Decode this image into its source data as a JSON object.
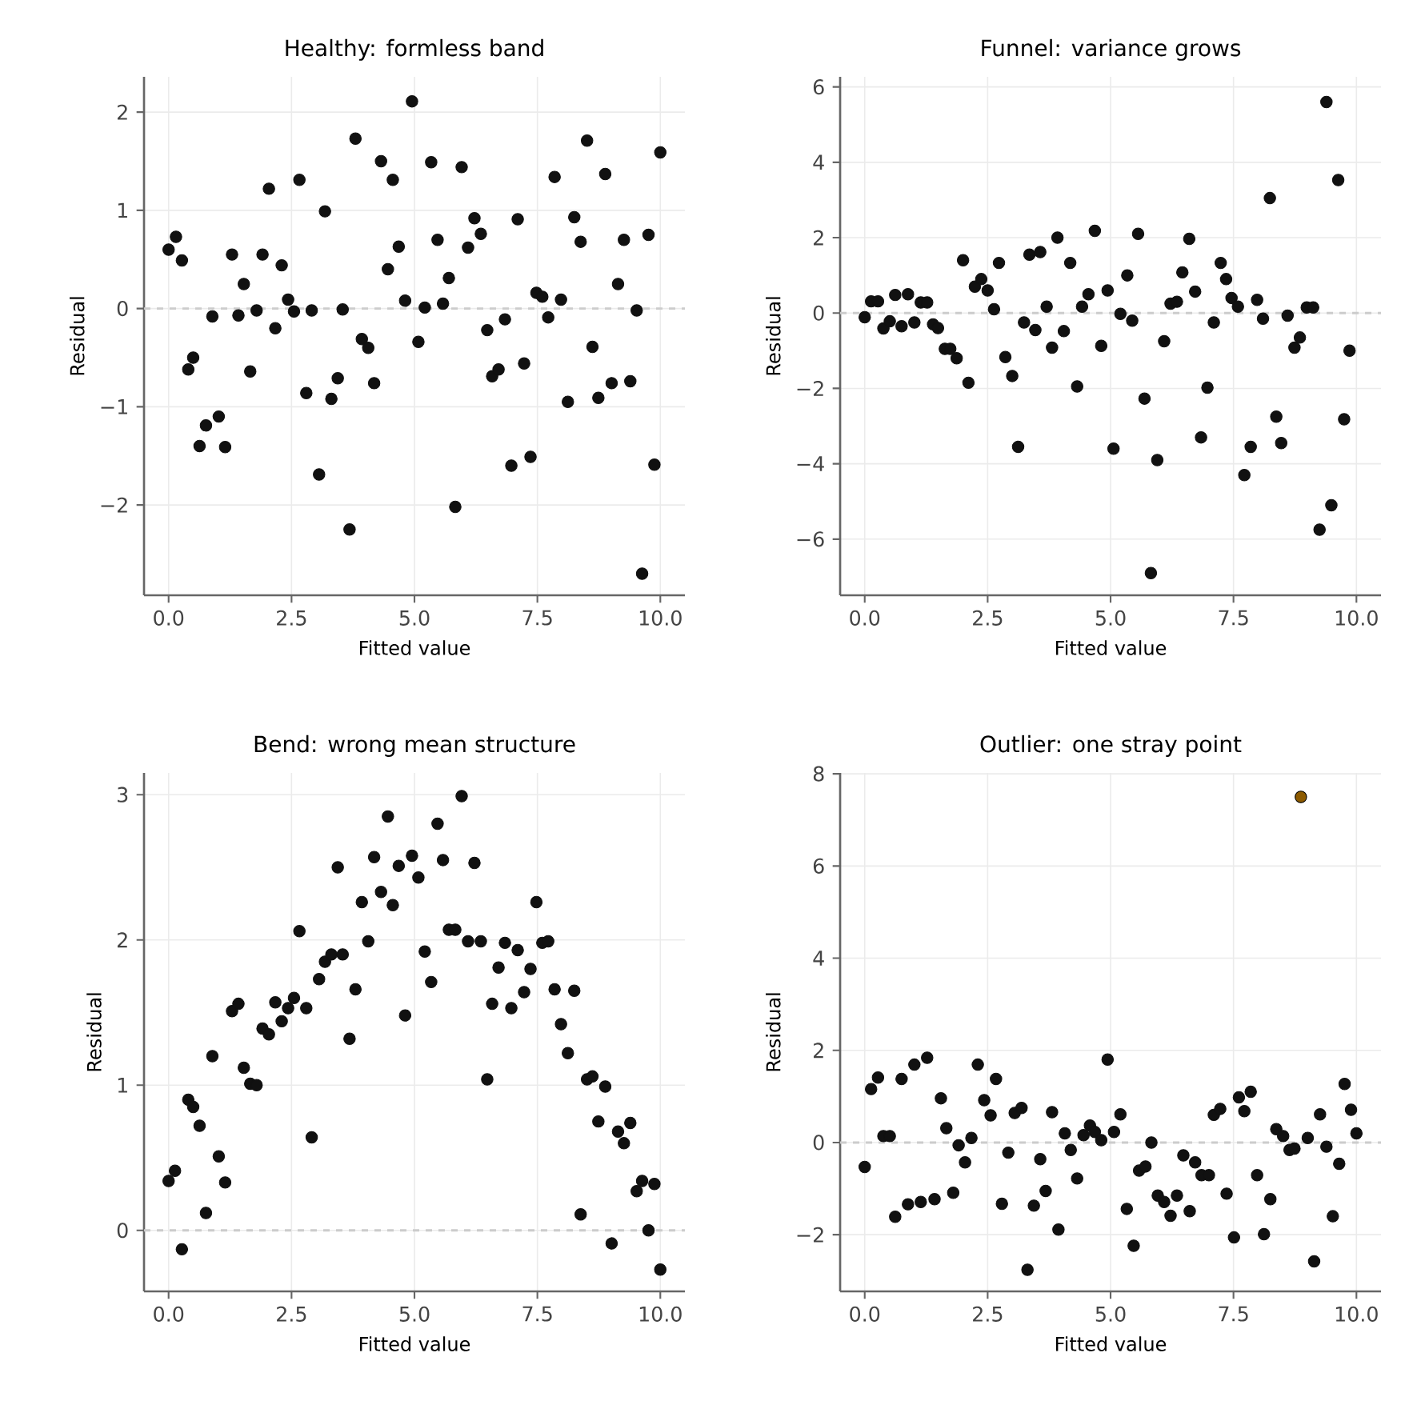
{
  "chart_data": [
    {
      "type": "scatter",
      "title": "Healthy: formless band",
      "xlabel": "Fitted value",
      "ylabel": "Residual",
      "marker": "circle",
      "grid": true,
      "xlim": [
        -0.5,
        10.5
      ],
      "ylim": [
        -2.92,
        2.36
      ],
      "xticks": [
        {
          "value": 0,
          "label": "0.0"
        },
        {
          "value": 2.5,
          "label": "2.5"
        },
        {
          "value": 5,
          "label": "5.0"
        },
        {
          "value": 7.5,
          "label": "7.5"
        },
        {
          "value": 10,
          "label": "10.0"
        }
      ],
      "yticks": [
        {
          "value": -2,
          "label": "−2"
        },
        {
          "value": -1,
          "label": "−1"
        },
        0,
        1,
        2
      ],
      "ref_lines": [
        {
          "axis": "y",
          "value": 0,
          "color": "#cccccc",
          "line_style": "dashed"
        }
      ],
      "x": [
        0.0,
        0.15,
        0.27,
        0.4,
        0.5,
        0.63,
        0.76,
        0.89,
        1.02,
        1.15,
        1.29,
        1.42,
        1.53,
        1.66,
        1.79,
        1.91,
        2.04,
        2.17,
        2.3,
        2.43,
        2.55,
        2.66,
        2.8,
        2.91,
        3.06,
        3.18,
        3.31,
        3.44,
        3.54,
        3.68,
        3.8,
        3.93,
        4.06,
        4.18,
        4.32,
        4.46,
        4.56,
        4.68,
        4.81,
        4.95,
        5.08,
        5.21,
        5.34,
        5.47,
        5.58,
        5.7,
        5.83,
        5.96,
        6.09,
        6.22,
        6.35,
        6.48,
        6.58,
        6.71,
        6.84,
        6.97,
        7.1,
        7.23,
        7.36,
        7.48,
        7.6,
        7.72,
        7.85,
        7.98,
        8.12,
        8.25,
        8.38,
        8.51,
        8.62,
        8.74,
        8.88,
        9.01,
        9.14,
        9.26,
        9.39,
        9.52,
        9.63,
        9.76,
        9.88,
        10.0
      ],
      "series": [
        {
          "color": "#111111",
          "values": [
            0.6,
            0.73,
            0.49,
            -0.62,
            -0.5,
            -1.4,
            -1.19,
            -0.08,
            -1.1,
            -1.41,
            0.55,
            -0.07,
            0.25,
            -0.64,
            -0.02,
            0.55,
            1.22,
            -0.2,
            0.44,
            0.09,
            -0.03,
            1.31,
            -0.86,
            -0.02,
            -1.69,
            0.99,
            -0.92,
            -0.71,
            -0.01,
            -2.25,
            1.73,
            -0.31,
            -0.4,
            -0.76,
            1.5,
            0.4,
            1.31,
            0.63,
            0.08,
            2.11,
            -0.34,
            0.01,
            1.49,
            0.7,
            0.05,
            0.31,
            -2.02,
            1.44,
            0.62,
            0.92,
            0.76,
            -0.22,
            -0.69,
            -0.62,
            -0.11,
            -1.6,
            0.91,
            -0.56,
            -1.51,
            0.16,
            0.12,
            -0.09,
            1.34,
            0.09,
            -0.95,
            0.93,
            0.68,
            1.71,
            -0.39,
            -0.91,
            1.37,
            -0.76,
            0.25,
            0.7,
            -0.74,
            -0.02,
            -2.7,
            0.75,
            -1.59,
            1.59
          ]
        }
      ]
    },
    {
      "type": "scatter",
      "title": "Funnel: variance grows",
      "xlabel": "Fitted value",
      "ylabel": "Residual",
      "marker": "circle",
      "grid": true,
      "xlim": [
        -0.5,
        10.5
      ],
      "ylim": [
        -7.49,
        6.27
      ],
      "xticks": [
        {
          "value": 0,
          "label": "0.0"
        },
        {
          "value": 2.5,
          "label": "2.5"
        },
        {
          "value": 5,
          "label": "5.0"
        },
        {
          "value": 7.5,
          "label": "7.5"
        },
        {
          "value": 10,
          "label": "10.0"
        }
      ],
      "yticks": [
        {
          "value": -6,
          "label": "−6"
        },
        {
          "value": -4,
          "label": "−4"
        },
        {
          "value": -2,
          "label": "−2"
        },
        0,
        2,
        4,
        6
      ],
      "ref_lines": [
        {
          "axis": "y",
          "value": 0,
          "color": "#cccccc",
          "line_style": "dashed"
        }
      ],
      "x": [
        0.0,
        0.13,
        0.27,
        0.38,
        0.51,
        0.62,
        0.75,
        0.88,
        1.01,
        1.14,
        1.27,
        1.39,
        1.49,
        1.63,
        1.74,
        1.87,
        2.0,
        2.11,
        2.24,
        2.37,
        2.5,
        2.63,
        2.73,
        2.86,
        3.0,
        3.12,
        3.24,
        3.35,
        3.47,
        3.57,
        3.7,
        3.81,
        3.92,
        4.05,
        4.18,
        4.32,
        4.42,
        4.55,
        4.68,
        4.81,
        4.94,
        5.06,
        5.2,
        5.34,
        5.44,
        5.56,
        5.69,
        5.82,
        5.95,
        6.09,
        6.22,
        6.35,
        6.46,
        6.6,
        6.72,
        6.84,
        6.97,
        7.1,
        7.24,
        7.35,
        7.46,
        7.59,
        7.72,
        7.85,
        7.98,
        8.1,
        8.24,
        8.37,
        8.47,
        8.6,
        8.74,
        8.85,
        8.99,
        9.12,
        9.25,
        9.39,
        9.49,
        9.63,
        9.75,
        9.86
      ],
      "series": [
        {
          "color": "#111111",
          "values": [
            -0.11,
            0.31,
            0.31,
            -0.41,
            -0.22,
            0.48,
            -0.35,
            0.5,
            -0.25,
            0.28,
            0.28,
            -0.3,
            -0.4,
            -0.95,
            -0.95,
            -1.2,
            1.4,
            -1.85,
            0.7,
            0.9,
            0.6,
            0.1,
            1.33,
            -1.17,
            -1.67,
            -3.55,
            -0.25,
            1.55,
            -0.45,
            1.62,
            0.17,
            -0.92,
            2.0,
            -0.48,
            1.33,
            -1.95,
            0.17,
            0.5,
            2.18,
            -0.87,
            0.6,
            -3.6,
            -0.02,
            1.0,
            -0.2,
            2.1,
            -2.27,
            -6.9,
            -3.9,
            -0.75,
            0.25,
            0.3,
            1.08,
            1.97,
            0.57,
            -3.3,
            -1.98,
            -0.25,
            1.33,
            0.9,
            0.4,
            0.17,
            -4.3,
            -3.55,
            0.35,
            -0.15,
            3.05,
            -2.75,
            -3.45,
            -0.07,
            -0.92,
            -0.65,
            0.15,
            0.15,
            -5.75,
            5.6,
            -5.1,
            3.53,
            -2.82,
            -1.0
          ]
        }
      ]
    },
    {
      "type": "scatter",
      "title": "Bend: wrong mean structure",
      "xlabel": "Fitted value",
      "ylabel": "Residual",
      "marker": "circle",
      "grid": true,
      "xlim": [
        -0.5,
        10.5
      ],
      "ylim": [
        -0.42,
        3.15
      ],
      "xticks": [
        {
          "value": 0,
          "label": "0.0"
        },
        {
          "value": 2.5,
          "label": "2.5"
        },
        {
          "value": 5,
          "label": "5.0"
        },
        {
          "value": 7.5,
          "label": "7.5"
        },
        {
          "value": 10,
          "label": "10.0"
        }
      ],
      "yticks": [
        0,
        1,
        2,
        3
      ],
      "ref_lines": [
        {
          "axis": "y",
          "value": 0,
          "color": "#cccccc",
          "line_style": "dashed"
        }
      ],
      "x": [
        0.0,
        0.13,
        0.27,
        0.4,
        0.5,
        0.63,
        0.76,
        0.89,
        1.02,
        1.15,
        1.29,
        1.42,
        1.53,
        1.66,
        1.79,
        1.91,
        2.04,
        2.17,
        2.3,
        2.43,
        2.55,
        2.66,
        2.8,
        2.91,
        3.06,
        3.18,
        3.31,
        3.44,
        3.54,
        3.68,
        3.8,
        3.93,
        4.06,
        4.18,
        4.32,
        4.46,
        4.56,
        4.68,
        4.81,
        4.95,
        5.08,
        5.21,
        5.34,
        5.47,
        5.58,
        5.7,
        5.83,
        5.96,
        6.09,
        6.22,
        6.35,
        6.48,
        6.58,
        6.71,
        6.84,
        6.97,
        7.1,
        7.23,
        7.36,
        7.48,
        7.6,
        7.72,
        7.85,
        7.98,
        8.12,
        8.25,
        8.38,
        8.51,
        8.62,
        8.74,
        8.88,
        9.01,
        9.14,
        9.26,
        9.39,
        9.52,
        9.63,
        9.76,
        9.88,
        10.0
      ],
      "series": [
        {
          "color": "#111111",
          "values": [
            0.34,
            0.41,
            -0.13,
            0.9,
            0.85,
            0.72,
            0.12,
            1.2,
            0.51,
            0.33,
            1.51,
            1.56,
            1.12,
            1.01,
            1.0,
            1.39,
            1.35,
            1.57,
            1.44,
            1.53,
            1.6,
            2.06,
            1.53,
            0.64,
            1.73,
            1.85,
            1.9,
            2.5,
            1.9,
            1.32,
            1.66,
            2.26,
            1.99,
            2.57,
            2.33,
            2.85,
            2.24,
            2.51,
            1.48,
            2.58,
            2.43,
            1.92,
            1.71,
            2.8,
            2.55,
            2.07,
            2.07,
            2.99,
            1.99,
            2.53,
            1.99,
            1.04,
            1.56,
            1.81,
            1.98,
            1.53,
            1.93,
            1.64,
            1.8,
            2.26,
            1.98,
            1.99,
            1.66,
            1.42,
            1.22,
            1.65,
            0.11,
            1.04,
            1.06,
            0.75,
            0.99,
            -0.09,
            0.68,
            0.6,
            0.74,
            0.27,
            0.34,
            0.0,
            0.32,
            -0.27
          ]
        }
      ]
    },
    {
      "type": "scatter",
      "title": "Outlier: one stray point",
      "xlabel": "Fitted value",
      "ylabel": "Residual",
      "marker": "circle",
      "grid": true,
      "xlim": [
        -0.5,
        10.5
      ],
      "ylim": [
        -3.23,
        8.02
      ],
      "xticks": [
        {
          "value": 0,
          "label": "0.0"
        },
        {
          "value": 2.5,
          "label": "2.5"
        },
        {
          "value": 5,
          "label": "5.0"
        },
        {
          "value": 7.5,
          "label": "7.5"
        },
        {
          "value": 10,
          "label": "10.0"
        }
      ],
      "yticks": [
        {
          "value": -2,
          "label": "−2"
        },
        0,
        2,
        4,
        6,
        8
      ],
      "ref_lines": [
        {
          "axis": "y",
          "value": 0,
          "color": "#cccccc",
          "line_style": "dashed"
        }
      ],
      "series": [
        {
          "color": "#111111",
          "x": [
            0.0,
            0.13,
            0.27,
            0.38,
            0.51,
            0.62,
            0.75,
            0.88,
            1.01,
            1.14,
            1.27,
            1.42,
            1.55,
            1.66,
            1.8,
            1.91,
            2.04,
            2.17,
            2.3,
            2.43,
            2.56,
            2.67,
            2.79,
            2.92,
            3.05,
            3.19,
            3.31,
            3.44,
            3.57,
            3.68,
            3.81,
            3.94,
            4.07,
            4.19,
            4.32,
            4.45,
            4.58,
            4.68,
            4.81,
            4.94,
            5.07,
            5.2,
            5.33,
            5.47,
            5.58,
            5.71,
            5.83,
            5.96,
            6.09,
            6.22,
            6.35,
            6.48,
            6.61,
            6.72,
            6.85,
            7.0,
            7.1,
            7.23,
            7.36,
            7.51,
            7.61,
            7.72,
            7.85,
            7.98,
            8.12,
            8.25,
            8.37,
            8.51,
            8.64,
            8.74,
            9.01,
            9.14,
            9.26,
            9.39,
            9.52,
            9.65,
            9.76,
            9.89,
            10.0
          ],
          "values": [
            -0.53,
            1.16,
            1.41,
            0.14,
            0.14,
            -1.61,
            1.38,
            -1.34,
            1.69,
            -1.29,
            1.84,
            -1.23,
            0.96,
            0.31,
            -1.09,
            -0.06,
            -0.43,
            0.1,
            1.69,
            0.92,
            0.59,
            1.38,
            -1.33,
            -0.22,
            0.64,
            0.75,
            -2.76,
            -1.37,
            -0.36,
            -1.05,
            0.66,
            -1.89,
            0.2,
            -0.16,
            -0.78,
            0.16,
            0.37,
            0.23,
            0.05,
            1.8,
            0.23,
            0.61,
            -1.44,
            -2.24,
            -0.61,
            -0.52,
            0.0,
            -1.15,
            -1.29,
            -1.59,
            -1.15,
            -0.28,
            -1.49,
            -0.43,
            -0.71,
            -0.71,
            0.6,
            0.73,
            -1.11,
            -2.06,
            0.98,
            0.68,
            1.1,
            -0.71,
            -1.99,
            -1.23,
            0.29,
            0.14,
            -0.16,
            -0.13,
            0.1,
            -2.58,
            0.61,
            -0.09,
            -1.6,
            -0.46,
            1.27,
            0.71,
            0.2
          ]
        },
        {
          "color": "#8c5a00",
          "x": [
            8.87
          ],
          "values": [
            7.5
          ]
        }
      ]
    }
  ]
}
